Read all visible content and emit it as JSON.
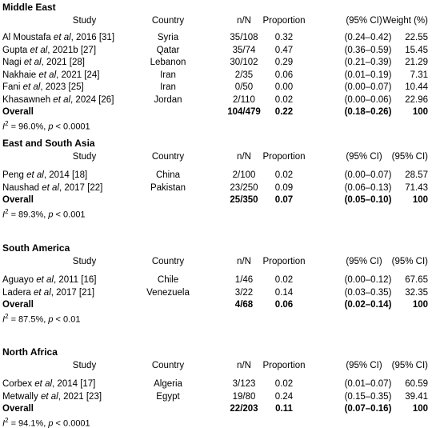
{
  "sections": [
    {
      "title": "Middle East",
      "headers": {
        "study": "Study",
        "country": "Country",
        "n": "n/N",
        "proportion": "Proportion",
        "ci": "(95% CI)",
        "weight": "Weight (%)"
      },
      "rows": [
        {
          "study": "Al Moustafa et al, 2016 [31]",
          "country": "Syria",
          "n": "35/108",
          "proportion": "0.32",
          "ci": "(0.24–0.42)",
          "weight": "22.55"
        },
        {
          "study": "Gupta et al, 2021b [27]",
          "country": "Qatar",
          "n": "35/74",
          "proportion": "0.47",
          "ci": "(0.36–0.59)",
          "weight": "15.45"
        },
        {
          "study": "Nagi et al, 2021 [28]",
          "country": "Lebanon",
          "n": "30/102",
          "proportion": "0.29",
          "ci": "(0.21–0.39)",
          "weight": "21.29"
        },
        {
          "study": "Nakhaie et al, 2021 [24]",
          "country": "Iran",
          "n": "2/35",
          "proportion": "0.06",
          "ci": "(0.01–0.19)",
          "weight": "7.31"
        },
        {
          "study": "Fani et al, 2023 [25]",
          "country": "Iran",
          "n": "0/50",
          "proportion": "0.00",
          "ci": "(0.00–0.07)",
          "weight": "10.44"
        },
        {
          "study": "Khasawneh et al, 2024 [26]",
          "country": "Jordan",
          "n": "2/110",
          "proportion": "0.02",
          "ci": "(0.00–0.06)",
          "weight": "22.96"
        }
      ],
      "overall": {
        "label": "Overall",
        "n": "104/479",
        "proportion": "0.22",
        "ci": "(0.18–0.26)",
        "weight": "100"
      },
      "heterogeneity": {
        "i2": "= 96.0%,",
        "p": "< 0.0001"
      }
    },
    {
      "title": "East and South Asia",
      "headers": {
        "study": "Study",
        "country": "Country",
        "n": "n/N",
        "proportion": "Proportion",
        "ci": "(95% CI)",
        "weight": "(95% CI)"
      },
      "rows": [
        {
          "study": "Peng et al, 2014 [18]",
          "country": "China",
          "n": "2/100",
          "proportion": "0.02",
          "ci": "(0.00–0.07)",
          "weight": "28.57"
        },
        {
          "study": "Naushad et al, 2017 [22]",
          "country": "Pakistan",
          "n": "23/250",
          "proportion": "0.09",
          "ci": "(0.06–0.13)",
          "weight": "71.43"
        }
      ],
      "overall": {
        "label": "Overall",
        "n": "25/350",
        "proportion": "0.07",
        "ci": "(0.05–0.10)",
        "weight": "100"
      },
      "heterogeneity": {
        "i2": "= 89.3%,",
        "p": "< 0.001"
      }
    },
    {
      "title": "South America",
      "headers": {
        "study": "Study",
        "country": "Country",
        "n": "n/N",
        "proportion": "Proportion",
        "ci": "(95% CI)",
        "weight": "(95% CI)"
      },
      "rows": [
        {
          "study": "Aguayo et al, 2011 [16]",
          "country": "Chile",
          "n": "1/46",
          "proportion": "0.02",
          "ci": "(0.00–0.12)",
          "weight": "67.65"
        },
        {
          "study": "Ladera et al, 2017 [21]",
          "country": "Venezuela",
          "n": "3/22",
          "proportion": "0.14",
          "ci": "(0.03–0.35)",
          "weight": "32.35"
        }
      ],
      "overall": {
        "label": "Overall",
        "n": "4/68",
        "proportion": "0.06",
        "ci": "(0.02–0.14)",
        "weight": "100"
      },
      "heterogeneity": {
        "i2": "= 87.5%,",
        "p": "< 0.01"
      }
    },
    {
      "title": "North Africa",
      "headers": {
        "study": "Study",
        "country": "Country",
        "n": "n/N",
        "proportion": "Proportion",
        "ci": "(95% CI)",
        "weight": "(95% CI)"
      },
      "rows": [
        {
          "study": "Corbex et al, 2014 [17]",
          "country": "Algeria",
          "n": "3/123",
          "proportion": "0.02",
          "ci": "(0.01–0.07)",
          "weight": "60.59"
        },
        {
          "study": "Metwally et al, 2021 [23]",
          "country": "Egypt",
          "n": "19/80",
          "proportion": "0.24",
          "ci": "(0.15–0.35)",
          "weight": "39.41"
        }
      ],
      "overall": {
        "label": "Overall",
        "n": "22/203",
        "proportion": "0.11",
        "ci": "(0.07–0.16)",
        "weight": "100"
      },
      "heterogeneity": {
        "i2": "= 94.1%,",
        "p": "< 0.0001"
      }
    }
  ]
}
